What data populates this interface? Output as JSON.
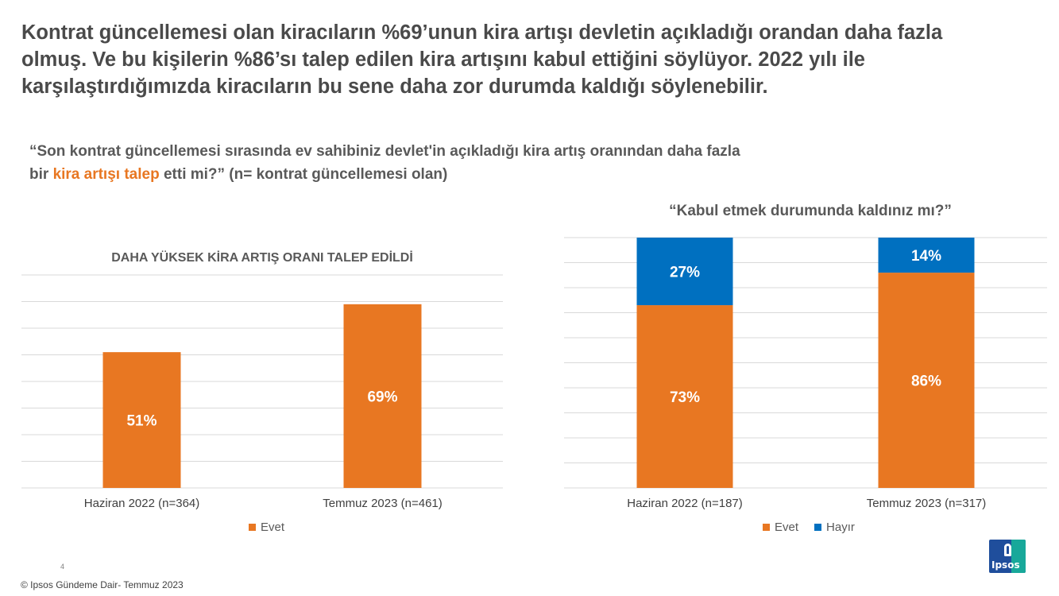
{
  "headline": "Kontrat güncellemesi olan kiracıların %69’unun kira artışı  devletin açıkladığı orandan daha fazla olmuş. Ve bu kişilerin %86’sı talep edilen kira artışını kabul ettiğini söylüyor. 2022 yılı ile karşılaştırdığımızda kiracıların bu sene daha zor durumda kaldığı söylenebilir.",
  "question": {
    "part1": "“Son kontrat güncellemesi sırasında ev sahibiniz devlet'in açıkladığı kira artış oranından daha fazla bir ",
    "highlight": "kira artışı talep",
    "part2": " etti mi?” (n= kontrat güncellemesi olan)"
  },
  "colors": {
    "evet": "#e87722",
    "hayir": "#0070c0",
    "grid": "#d9d9d9",
    "label": "#ffffff"
  },
  "chart_data": [
    {
      "type": "bar",
      "title": "DAHA YÜKSEK KİRA ARTIŞ ORANI TALEP EDİLDİ",
      "categories": [
        "Haziran 2022 (n=364)",
        "Temmuz 2023 (n=461)"
      ],
      "series": [
        {
          "name": "Evet",
          "values": [
            51,
            69
          ],
          "labels": [
            "51%",
            "69%"
          ]
        }
      ],
      "ylim": [
        0,
        80
      ],
      "grid": true,
      "legend": "bottom"
    },
    {
      "type": "bar",
      "stacked": true,
      "title": "“Kabul etmek durumunda kaldınız mı?”",
      "categories": [
        "Haziran 2022 (n=187)",
        "Temmuz 2023 (n=317)"
      ],
      "series": [
        {
          "name": "Evet",
          "values": [
            73,
            86
          ],
          "labels": [
            "73%",
            "86%"
          ]
        },
        {
          "name": "Hayır",
          "values": [
            27,
            14
          ],
          "labels": [
            "27%",
            "14%"
          ]
        }
      ],
      "ylim": [
        0,
        100
      ],
      "grid": true,
      "legend": "bottom"
    }
  ],
  "footer": {
    "page_number": "4",
    "copyright": "© Ipsos Gündeme Dair- Temmuz 2023",
    "logo_text": "Ipsos"
  }
}
